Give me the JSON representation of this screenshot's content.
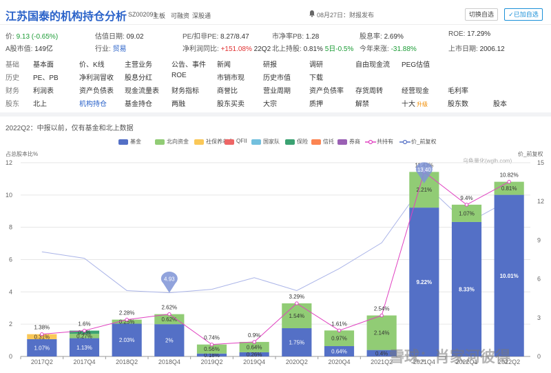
{
  "header": {
    "title": "江苏国泰的机构持仓分析",
    "code": "SZ002091",
    "tags": [
      "主板",
      "可融资",
      "深股通"
    ],
    "notice": "08月27日：财报发布",
    "switch_button": "切换自选",
    "added_button": "已加自选"
  },
  "stats": {
    "price_label": "价:",
    "price_value": "9.13 (-0.65%)",
    "valuation_date_label": "估值日期:",
    "valuation_date_value": "09.02",
    "pe_label": "PE/扣非PE:",
    "pe_value": "8.27/8.47",
    "pb_label": "市净率PB:",
    "pb_value": "1.28",
    "dividend_label": "股息率:",
    "dividend_value": "2.69%",
    "roe_label": "ROE:",
    "roe_value": "17.29%",
    "mcap_label": "A股市值:",
    "mcap_value": "149亿",
    "industry_label": "行业:",
    "industry_value": "贸易",
    "profit_growth_label": "净利润同比:",
    "profit_growth_value": "+151.08%",
    "profit_growth_period": "22Q2",
    "northbound_label": "北上持股:",
    "northbound_value": "0.81%",
    "northbound_5d": "5日-0.5%",
    "ytd_label": "今年来涨:",
    "ytd_value": "-31.88%",
    "listing_label": "上市日期:",
    "listing_value": "2006.12"
  },
  "nav": [
    {
      "category": "基础",
      "links": [
        "基本面",
        "价、K线",
        "主营业务",
        "公告、事件",
        "新闻",
        "研报",
        "调研",
        "自由现金流",
        "PEG估值"
      ]
    },
    {
      "category": "历史",
      "links": [
        "PE、PB",
        "净利润冒收",
        "股息分红",
        "ROE",
        "市销市现",
        "历史市值",
        "下载"
      ]
    },
    {
      "category": "财务",
      "links": [
        "利润表",
        "资产负债表",
        "现金流量表",
        "财务指标",
        "商誉比",
        "营业周期",
        "资产负债率",
        "存货周转",
        "经营现金",
        "毛利率"
      ]
    },
    {
      "category": "股东",
      "links": [
        "北上",
        "机构持仓",
        "基金持仓",
        "两融",
        "股东买卖",
        "大宗",
        "质押",
        "解禁",
        "十大",
        "股东数",
        "股本"
      ],
      "active": "机构持仓",
      "badge": "升级"
    }
  ],
  "subtitle": "2022Q2：中报以前，仅有基金和北上数据",
  "watermark_small": "乌龟量化(wglh.com)",
  "watermark": "雪球：肖家河彼得",
  "chart_data": {
    "type": "bar",
    "stacked": true,
    "categories": [
      "2017Q2",
      "2017Q4",
      "2018Q2",
      "2018Q4",
      "2019Q2",
      "2019Q4",
      "2020Q2",
      "2020Q4",
      "2021Q2",
      "2021Q4",
      "2022Q1",
      "2022Q2"
    ],
    "ylabel_left": "占总股本比%",
    "ylabel_right": "价_前复权",
    "ylim": [
      0,
      12
    ],
    "ylim_right": [
      0,
      15
    ],
    "yticks": [
      0,
      2,
      4,
      6,
      8,
      10,
      12
    ],
    "yticks_right": [
      0,
      3,
      6,
      9,
      12,
      15
    ],
    "legend": [
      {
        "name": "基金",
        "color": "#5470c6",
        "kind": "bar"
      },
      {
        "name": "北向资金",
        "color": "#91cc75",
        "kind": "bar"
      },
      {
        "name": "社保养老金",
        "color": "#fac858",
        "kind": "bar"
      },
      {
        "name": "QFII",
        "color": "#ee6666",
        "kind": "bar"
      },
      {
        "name": "国家队",
        "color": "#73c0de",
        "kind": "bar"
      },
      {
        "name": "保险",
        "color": "#3ba272",
        "kind": "bar"
      },
      {
        "name": "信托",
        "color": "#fc8452",
        "kind": "bar"
      },
      {
        "name": "券商",
        "color": "#9a60b4",
        "kind": "bar"
      },
      {
        "name": "共持有",
        "color": "#e040c0",
        "kind": "line"
      },
      {
        "name": "价_前复权",
        "color": "#5470c6",
        "kind": "line"
      }
    ],
    "series": [
      {
        "name": "基金",
        "values": [
          1.07,
          1.13,
          2.03,
          2.0,
          0.18,
          0.26,
          1.75,
          0.64,
          0.4,
          9.22,
          8.33,
          10.01
        ],
        "labels": [
          "1.07%",
          "1.13%",
          "2.03%",
          "2%",
          "0.18%",
          "0.26%",
          "1.75%",
          "0.64%",
          "0.4%",
          "9.22%",
          "8.33%",
          "10.01%"
        ]
      },
      {
        "name": "北向资金",
        "values": [
          0.0,
          0.27,
          0.25,
          0.62,
          0.56,
          0.64,
          1.54,
          0.97,
          2.14,
          2.21,
          1.07,
          0.81
        ],
        "labels": [
          "",
          "0.27%",
          "0.25%",
          "0.62%",
          "0.56%",
          "0.64%",
          "1.54%",
          "0.97%",
          "2.14%",
          "2.21%",
          "1.07%",
          "0.81%"
        ]
      },
      {
        "name": "社保养老金",
        "values": [
          0.31,
          0.0,
          0,
          0,
          0,
          0,
          0,
          0,
          0,
          0,
          0,
          0
        ],
        "labels": [
          "0.31%",
          "",
          "",
          "",
          "",
          "",
          "",
          "",
          "",
          "",
          "",
          ""
        ]
      },
      {
        "name": "保险",
        "values": [
          0,
          0.2,
          0,
          0,
          0,
          0,
          0,
          0,
          0,
          0,
          0,
          0
        ],
        "labels": [
          "",
          "0.2%",
          "",
          "",
          "",
          "",
          "",
          "",
          "",
          "",
          "",
          ""
        ]
      }
    ],
    "total": {
      "name": "共持有",
      "values": [
        1.38,
        1.6,
        2.28,
        2.62,
        0.74,
        0.9,
        3.29,
        1.61,
        2.54,
        11.43,
        9.4,
        10.82
      ],
      "labels": [
        "1.38%",
        "1.6%",
        "2.28%",
        "2.62%",
        "0.74%",
        "0.9%",
        "3.29%",
        "1.61%",
        "2.54%",
        "11.43%",
        "9.4%",
        "10.82%"
      ]
    },
    "price": {
      "name": "价_前复权",
      "values": [
        8.1,
        7.6,
        5.1,
        4.93,
        5.2,
        6.1,
        5.1,
        6.8,
        8.8,
        13.4,
        10.3,
        12.1
      ]
    },
    "price_markers": [
      {
        "index": 3,
        "label": "4.93"
      },
      {
        "index": 9,
        "label": "13.40"
      }
    ],
    "grid": true
  }
}
